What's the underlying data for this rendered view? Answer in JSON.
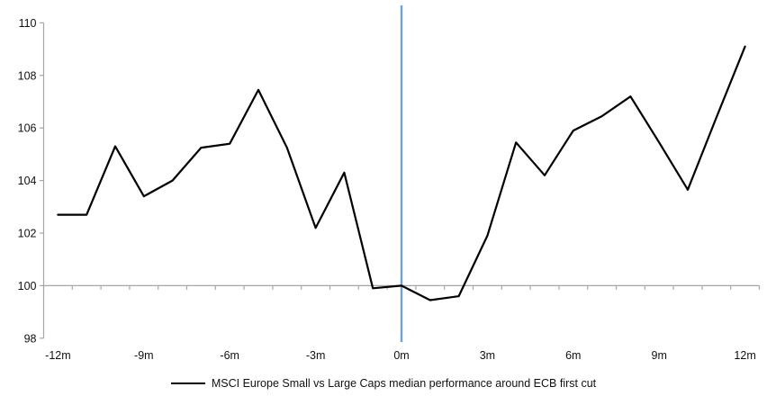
{
  "chart": {
    "legend_label": "MSCI Europe Small vs Large Caps median performance around ECB first cut"
  },
  "chart_data": {
    "type": "line",
    "title": "",
    "xlabel": "",
    "ylabel": "",
    "x_months": [
      -12,
      -11,
      -10,
      -9,
      -8,
      -7,
      -6,
      -5,
      -4,
      -3,
      -2,
      -1,
      0,
      1,
      2,
      3,
      4,
      5,
      6,
      7,
      8,
      9,
      10,
      11,
      12
    ],
    "values": [
      102.7,
      102.7,
      105.3,
      103.4,
      104.0,
      105.25,
      105.4,
      107.45,
      105.25,
      102.2,
      104.3,
      99.9,
      100.0,
      99.45,
      99.6,
      101.9,
      105.45,
      104.2,
      105.9,
      106.45,
      107.2,
      105.45,
      103.65,
      106.4,
      109.1
    ],
    "series": [
      {
        "name": "MSCI Europe Small vs Large Caps median performance around ECB first cut",
        "values": [
          102.7,
          102.7,
          105.3,
          103.4,
          104.0,
          105.25,
          105.4,
          107.45,
          105.25,
          102.2,
          104.3,
          99.9,
          100.0,
          99.45,
          99.6,
          101.9,
          105.45,
          104.2,
          105.9,
          106.45,
          107.2,
          105.45,
          103.65,
          106.4,
          109.1
        ]
      }
    ],
    "ylim": [
      98,
      110
    ],
    "yticks": [
      98,
      100,
      102,
      104,
      106,
      108,
      110
    ],
    "xtick_positions": [
      -12,
      -9,
      -6,
      -3,
      0,
      3,
      6,
      9,
      12
    ],
    "xtick_labels": [
      "-12m",
      "-9m",
      "-6m",
      "-3m",
      "0m",
      "3m",
      "6m",
      "9m",
      "12m"
    ],
    "baseline": 100,
    "event_line": {
      "x": 0,
      "color": "#72A2CF"
    },
    "grid": "off",
    "legend_position": "bottom-center",
    "colors": {
      "series": "#000000",
      "axis": "#A6A6A6",
      "tick_text": "#111111"
    }
  }
}
